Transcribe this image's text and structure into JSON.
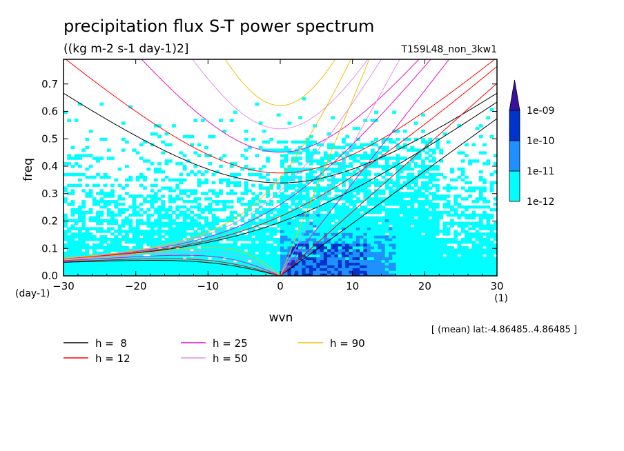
{
  "chart_data": {
    "type": "heatmap",
    "title": "precipitation flux S-T power spectrum",
    "subtitle": "((kg m-2 s-1 day-1)2]",
    "run_label": "T159L48_non_3kw1",
    "xlabel": "wvn",
    "x_unit": "(1)",
    "ylabel": "freq",
    "y_unit": "(day-1)",
    "xlim": [
      -30,
      30
    ],
    "ylim": [
      0,
      0.79
    ],
    "xticks": [
      {
        "v": -30,
        "label": "−30"
      },
      {
        "v": -20,
        "label": "−20"
      },
      {
        "v": -10,
        "label": "−10"
      },
      {
        "v": 0,
        "label": "0"
      },
      {
        "v": 10,
        "label": "10"
      },
      {
        "v": 20,
        "label": "20"
      },
      {
        "v": 30,
        "label": "30"
      }
    ],
    "yticks": [
      {
        "v": 0,
        "label": "0.0"
      },
      {
        "v": 0.1,
        "label": "0.1"
      },
      {
        "v": 0.2,
        "label": "0.2"
      },
      {
        "v": 0.3,
        "label": "0.3"
      },
      {
        "v": 0.4,
        "label": "0.4"
      },
      {
        "v": 0.5,
        "label": "0.5"
      },
      {
        "v": 0.6,
        "label": "0.6"
      },
      {
        "v": 0.7,
        "label": "0.7"
      }
    ],
    "annotation": "[ (mean) lat:-4.86485..4.86485 ]",
    "colorbar": {
      "levels": [
        "1e-12",
        "1e-11",
        "1e-10",
        "1e-09"
      ],
      "colors": [
        "#00ffff",
        "#1e90ff",
        "#0033cc",
        "#3a10a0"
      ]
    },
    "dispersion_curves": [
      {
        "label": "h =  8",
        "h": 8,
        "color": "#000000"
      },
      {
        "label": "h = 12",
        "h": 12,
        "color": "#ff0000"
      },
      {
        "label": "h = 25",
        "h": 25,
        "color": "#e010c0"
      },
      {
        "label": "h = 50",
        "h": 50,
        "color": "#e090e8"
      },
      {
        "label": "h = 90",
        "h": 90,
        "color": "#f0c000"
      }
    ],
    "grid": false
  }
}
